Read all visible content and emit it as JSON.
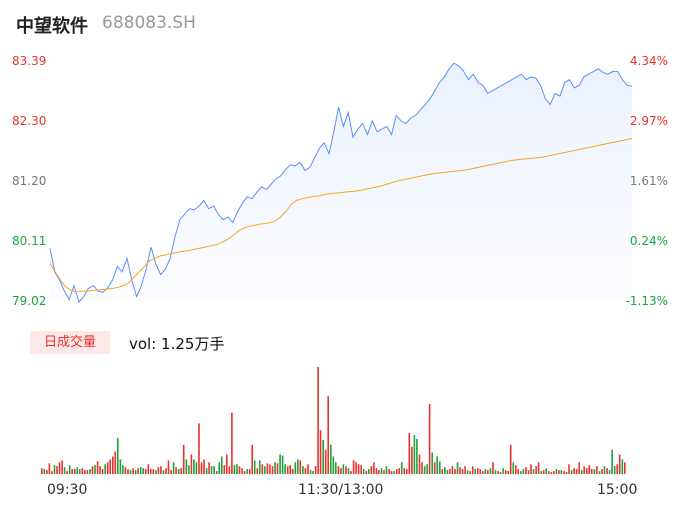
{
  "header": {
    "name": "中望软件",
    "code": "688083.SH"
  },
  "chart_data": {
    "type": "line",
    "y_price_ticks": [
      "83.39",
      "82.30",
      "81.20",
      "80.11",
      "79.02"
    ],
    "y_pct_ticks": [
      "4.34%",
      "2.97%",
      "1.61%",
      "0.24%",
      "-1.13%"
    ],
    "ylim": [
      79.02,
      83.39
    ],
    "x_ticks": [
      "09:30",
      "11:30/13:00",
      "15:00"
    ],
    "legend_badge": "日成交量",
    "volume_label": "vol: 1.25万手",
    "colors": {
      "price": "#5b8ff9",
      "avg": "#f5a623",
      "up": "#e8312c",
      "down": "#1aa338"
    },
    "series": [
      {
        "name": "price",
        "values": [
          79.98,
          79.55,
          79.4,
          79.2,
          79.05,
          79.3,
          79.0,
          79.1,
          79.25,
          79.3,
          79.2,
          79.18,
          79.26,
          79.4,
          79.65,
          79.55,
          79.8,
          79.4,
          79.1,
          79.3,
          79.6,
          80.0,
          79.7,
          79.5,
          79.6,
          79.8,
          80.2,
          80.5,
          80.6,
          80.7,
          80.68,
          80.75,
          80.85,
          80.7,
          80.75,
          80.6,
          80.5,
          80.55,
          80.45,
          80.65,
          80.8,
          80.92,
          80.88,
          81.0,
          81.1,
          81.05,
          81.15,
          81.25,
          81.3,
          81.42,
          81.5,
          81.48,
          81.55,
          81.4,
          81.45,
          81.62,
          81.8,
          81.9,
          81.7,
          82.1,
          82.55,
          82.2,
          82.45,
          82.0,
          82.15,
          82.25,
          82.05,
          82.3,
          82.1,
          82.15,
          82.2,
          82.05,
          82.4,
          82.3,
          82.25,
          82.35,
          82.4,
          82.5,
          82.6,
          82.7,
          82.85,
          83.0,
          83.1,
          83.25,
          83.35,
          83.3,
          83.2,
          83.05,
          83.15,
          83.0,
          82.95,
          82.8,
          82.85,
          82.9,
          82.95,
          83.0,
          83.05,
          83.1,
          83.15,
          83.05,
          83.1,
          83.08,
          82.95,
          82.7,
          82.6,
          82.8,
          82.75,
          83.0,
          83.05,
          82.9,
          82.95,
          83.1,
          83.15,
          83.2,
          83.25,
          83.18,
          83.15,
          83.2,
          83.2,
          83.05,
          82.95,
          82.93
        ]
      },
      {
        "name": "avg",
        "values": [
          79.7,
          79.55,
          79.4,
          79.28,
          79.22,
          79.18,
          79.2,
          79.2,
          79.21,
          79.22,
          79.23,
          79.24,
          79.25,
          79.27,
          79.3,
          79.35,
          79.45,
          79.55,
          79.65,
          79.75,
          79.8,
          79.84,
          79.86,
          79.88,
          79.9,
          79.92,
          79.93,
          79.95,
          79.97,
          79.99,
          80.01,
          80.03,
          80.05,
          80.1,
          80.15,
          80.22,
          80.3,
          80.35,
          80.38,
          80.4,
          80.42,
          80.43,
          80.45,
          80.48,
          80.55,
          80.65,
          80.78,
          80.85,
          80.88,
          80.9,
          80.92,
          80.93,
          80.95,
          80.97,
          80.98,
          80.99,
          81.0,
          81.01,
          81.02,
          81.03,
          81.05,
          81.07,
          81.09,
          81.11,
          81.14,
          81.17,
          81.2,
          81.22,
          81.24,
          81.26,
          81.28,
          81.3,
          81.32,
          81.34,
          81.35,
          81.36,
          81.37,
          81.38,
          81.39,
          81.4,
          81.42,
          81.44,
          81.46,
          81.48,
          81.5,
          81.52,
          81.54,
          81.56,
          81.58,
          81.59,
          81.6,
          81.61,
          81.62,
          81.63,
          81.64,
          81.66,
          81.68,
          81.7,
          81.72,
          81.74,
          81.76,
          81.78,
          81.8,
          81.82,
          81.84,
          81.86,
          81.88,
          81.9,
          81.92,
          81.94,
          81.96,
          81.98
        ]
      }
    ],
    "volume": [
      [
        6,
        "up"
      ],
      [
        5,
        "down"
      ],
      [
        4,
        "up"
      ],
      [
        11,
        "up"
      ],
      [
        3,
        "up"
      ],
      [
        9,
        "down"
      ],
      [
        8,
        "up"
      ],
      [
        12,
        "up"
      ],
      [
        14,
        "up"
      ],
      [
        7,
        "down"
      ],
      [
        3,
        "up"
      ],
      [
        9,
        "down"
      ],
      [
        5,
        "up"
      ],
      [
        5,
        "up"
      ],
      [
        7,
        "down"
      ],
      [
        5,
        "down"
      ],
      [
        6,
        "up"
      ],
      [
        4,
        "up"
      ],
      [
        4,
        "up"
      ],
      [
        5,
        "down"
      ],
      [
        8,
        "up"
      ],
      [
        9,
        "down"
      ],
      [
        13,
        "up"
      ],
      [
        8,
        "up"
      ],
      [
        5,
        "up"
      ],
      [
        10,
        "down"
      ],
      [
        12,
        "up"
      ],
      [
        15,
        "up"
      ],
      [
        18,
        "up"
      ],
      [
        23,
        "up"
      ],
      [
        37,
        "down"
      ],
      [
        15,
        "down"
      ],
      [
        9,
        "down"
      ],
      [
        7,
        "up"
      ],
      [
        5,
        "up"
      ],
      [
        4,
        "down"
      ],
      [
        6,
        "up"
      ],
      [
        4,
        "down"
      ],
      [
        6,
        "up"
      ],
      [
        7,
        "down"
      ],
      [
        6,
        "down"
      ],
      [
        5,
        "up"
      ],
      [
        10,
        "up"
      ],
      [
        5,
        "up"
      ],
      [
        5,
        "up"
      ],
      [
        4,
        "down"
      ],
      [
        7,
        "up"
      ],
      [
        8,
        "up"
      ],
      [
        4,
        "down"
      ],
      [
        6,
        "up"
      ],
      [
        14,
        "up"
      ],
      [
        4,
        "up"
      ],
      [
        12,
        "down"
      ],
      [
        7,
        "up"
      ],
      [
        5,
        "down"
      ],
      [
        6,
        "up"
      ],
      [
        30,
        "up"
      ],
      [
        15,
        "down"
      ],
      [
        9,
        "down"
      ],
      [
        20,
        "up"
      ],
      [
        15,
        "down"
      ],
      [
        12,
        "down"
      ],
      [
        52,
        "up"
      ],
      [
        12,
        "up"
      ],
      [
        15,
        "up"
      ],
      [
        6,
        "down"
      ],
      [
        12,
        "up"
      ],
      [
        8,
        "down"
      ],
      [
        8,
        "down"
      ],
      [
        3,
        "up"
      ],
      [
        12,
        "down"
      ],
      [
        18,
        "down"
      ],
      [
        9,
        "up"
      ],
      [
        20,
        "up"
      ],
      [
        8,
        "up"
      ],
      [
        63,
        "up"
      ],
      [
        9,
        "down"
      ],
      [
        10,
        "down"
      ],
      [
        8,
        "up"
      ],
      [
        6,
        "up"
      ],
      [
        3,
        "up"
      ],
      [
        5,
        "down"
      ],
      [
        5,
        "up"
      ],
      [
        30,
        "up"
      ],
      [
        14,
        "down"
      ],
      [
        6,
        "up"
      ],
      [
        14,
        "down"
      ],
      [
        10,
        "up"
      ],
      [
        8,
        "down"
      ],
      [
        11,
        "up"
      ],
      [
        10,
        "up"
      ],
      [
        8,
        "up"
      ],
      [
        12,
        "down"
      ],
      [
        11,
        "up"
      ],
      [
        20,
        "down"
      ],
      [
        19,
        "down"
      ],
      [
        10,
        "down"
      ],
      [
        8,
        "up"
      ],
      [
        9,
        "up"
      ],
      [
        5,
        "up"
      ],
      [
        12,
        "down"
      ],
      [
        15,
        "down"
      ],
      [
        14,
        "up"
      ],
      [
        8,
        "down"
      ],
      [
        6,
        "up"
      ],
      [
        10,
        "up"
      ],
      [
        4,
        "down"
      ],
      [
        3,
        "down"
      ],
      [
        8,
        "up"
      ],
      [
        110,
        "up"
      ],
      [
        45,
        "up"
      ],
      [
        35,
        "down"
      ],
      [
        25,
        "up"
      ],
      [
        80,
        "up"
      ],
      [
        30,
        "down"
      ],
      [
        18,
        "down"
      ],
      [
        12,
        "down"
      ],
      [
        8,
        "up"
      ],
      [
        6,
        "up"
      ],
      [
        10,
        "down"
      ],
      [
        8,
        "up"
      ],
      [
        6,
        "down"
      ],
      [
        3,
        "up"
      ],
      [
        14,
        "up"
      ],
      [
        12,
        "up"
      ],
      [
        10,
        "up"
      ],
      [
        9,
        "up"
      ],
      [
        5,
        "down"
      ],
      [
        3,
        "up"
      ],
      [
        5,
        "down"
      ],
      [
        8,
        "up"
      ],
      [
        12,
        "up"
      ],
      [
        6,
        "up"
      ],
      [
        4,
        "up"
      ],
      [
        6,
        "down"
      ],
      [
        4,
        "up"
      ],
      [
        8,
        "down"
      ],
      [
        5,
        "up"
      ],
      [
        3,
        "up"
      ],
      [
        3,
        "down"
      ],
      [
        5,
        "up"
      ],
      [
        6,
        "up"
      ],
      [
        12,
        "down"
      ],
      [
        6,
        "up"
      ],
      [
        5,
        "up"
      ],
      [
        42,
        "up"
      ],
      [
        28,
        "up"
      ],
      [
        40,
        "down"
      ],
      [
        36,
        "down"
      ],
      [
        20,
        "up"
      ],
      [
        12,
        "up"
      ],
      [
        8,
        "down"
      ],
      [
        10,
        "down"
      ],
      [
        72,
        "up"
      ],
      [
        22,
        "down"
      ],
      [
        12,
        "up"
      ],
      [
        18,
        "down"
      ],
      [
        13,
        "down"
      ],
      [
        5,
        "up"
      ],
      [
        7,
        "down"
      ],
      [
        4,
        "down"
      ],
      [
        5,
        "up"
      ],
      [
        8,
        "up"
      ],
      [
        5,
        "up"
      ],
      [
        12,
        "down"
      ],
      [
        7,
        "up"
      ],
      [
        5,
        "up"
      ],
      [
        8,
        "up"
      ],
      [
        4,
        "down"
      ],
      [
        3,
        "up"
      ],
      [
        8,
        "up"
      ],
      [
        5,
        "down"
      ],
      [
        6,
        "up"
      ],
      [
        5,
        "up"
      ],
      [
        3,
        "up"
      ],
      [
        5,
        "down"
      ],
      [
        4,
        "up"
      ],
      [
        6,
        "down"
      ],
      [
        12,
        "up"
      ],
      [
        4,
        "down"
      ],
      [
        3,
        "up"
      ],
      [
        2,
        "up"
      ],
      [
        6,
        "down"
      ],
      [
        4,
        "up"
      ],
      [
        3,
        "up"
      ],
      [
        30,
        "up"
      ],
      [
        12,
        "down"
      ],
      [
        9,
        "up"
      ],
      [
        5,
        "up"
      ],
      [
        3,
        "down"
      ],
      [
        5,
        "down"
      ],
      [
        7,
        "up"
      ],
      [
        4,
        "up"
      ],
      [
        10,
        "up"
      ],
      [
        5,
        "down"
      ],
      [
        8,
        "up"
      ],
      [
        12,
        "up"
      ],
      [
        3,
        "down"
      ],
      [
        4,
        "up"
      ],
      [
        6,
        "down"
      ],
      [
        3,
        "up"
      ],
      [
        2,
        "up"
      ],
      [
        3,
        "up"
      ],
      [
        5,
        "down"
      ],
      [
        4,
        "up"
      ],
      [
        4,
        "down"
      ],
      [
        3,
        "up"
      ],
      [
        2,
        "up"
      ],
      [
        10,
        "up"
      ],
      [
        4,
        "down"
      ],
      [
        6,
        "up"
      ],
      [
        5,
        "up"
      ],
      [
        12,
        "up"
      ],
      [
        4,
        "down"
      ],
      [
        8,
        "up"
      ],
      [
        6,
        "up"
      ],
      [
        9,
        "up"
      ],
      [
        5,
        "up"
      ],
      [
        5,
        "down"
      ],
      [
        8,
        "up"
      ],
      [
        3,
        "down"
      ],
      [
        5,
        "up"
      ],
      [
        8,
        "down"
      ],
      [
        6,
        "up"
      ],
      [
        4,
        "down"
      ],
      [
        25,
        "down"
      ],
      [
        8,
        "down"
      ],
      [
        10,
        "up"
      ],
      [
        20,
        "up"
      ],
      [
        15,
        "down"
      ],
      [
        12,
        "up"
      ]
    ]
  }
}
